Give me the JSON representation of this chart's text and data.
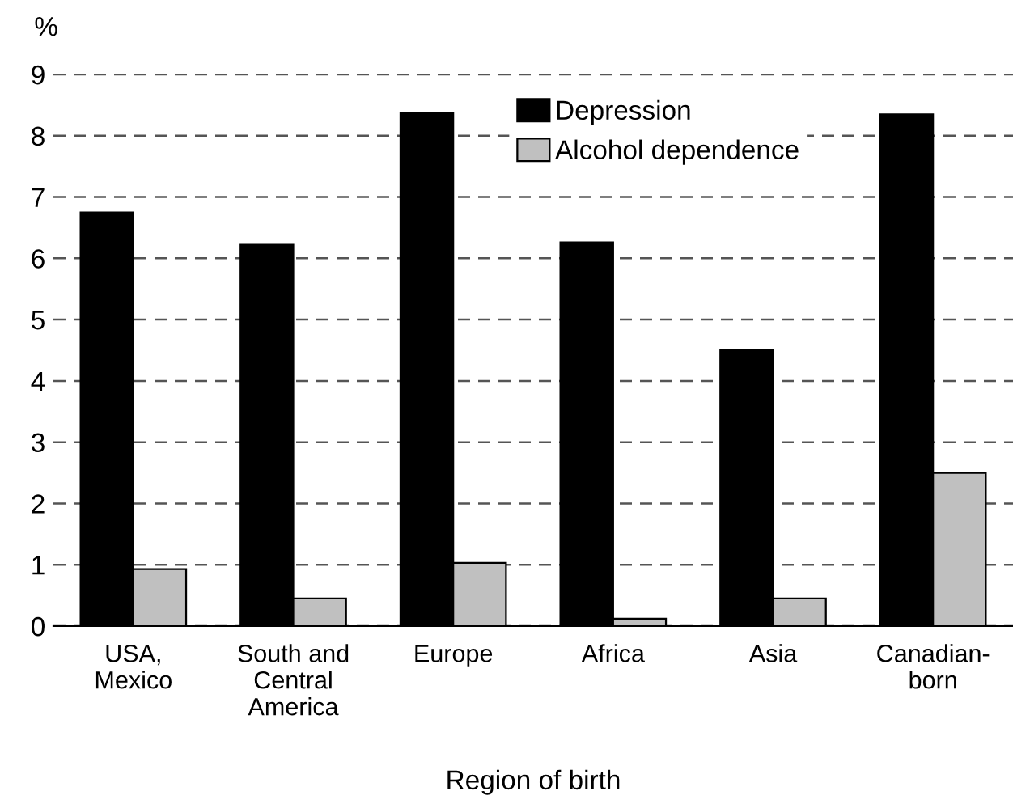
{
  "chart_data": {
    "type": "bar",
    "ylabel": "%",
    "xlabel": "Region of birth",
    "categories": [
      "USA,\nMexico",
      "South and\nCentral\nAmerica",
      "Europe",
      "Africa",
      "Asia",
      "Canadian-\nborn"
    ],
    "series": [
      {
        "name": "Depression",
        "color": "#000000",
        "values": [
          6.75,
          6.22,
          8.37,
          6.26,
          4.51,
          8.35
        ]
      },
      {
        "name": "Alcohol dependence",
        "color": "#c0c0c0",
        "values": [
          0.93,
          0.45,
          1.03,
          0.12,
          0.45,
          2.5
        ]
      }
    ],
    "ylim": [
      0,
      9
    ],
    "yticks": [
      0,
      1,
      2,
      3,
      4,
      5,
      6,
      7,
      8,
      9
    ],
    "grid": "y",
    "legend": "top"
  }
}
